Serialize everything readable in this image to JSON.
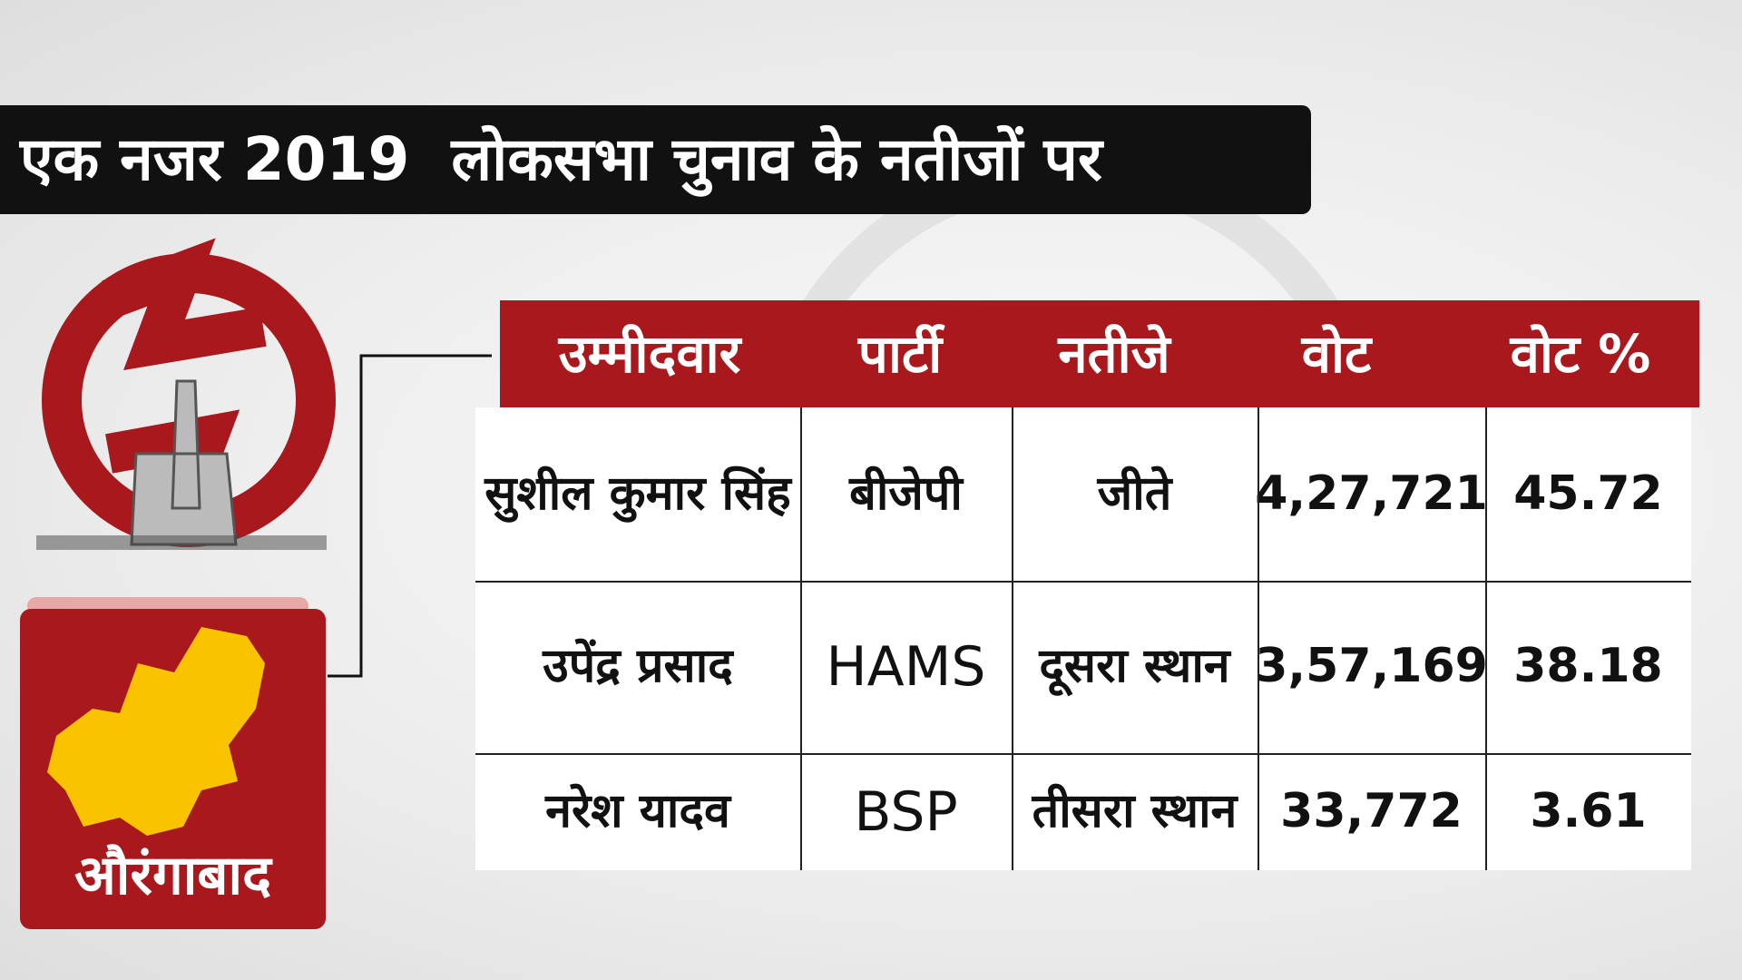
{
  "title": "एक नजर 2019  लोकसभा चुनाव के नतीजों पर",
  "region": "औरंगाबाद",
  "table": {
    "headers": [
      "उम्मीदवार",
      "पार्टी",
      "नतीजे",
      "वोट",
      "वोट %"
    ],
    "rows": [
      [
        "सुशील कुमार सिंह",
        "बीजेपी",
        "जीते",
        "4,27,721",
        "45.72"
      ],
      [
        "उपेंद्र प्रसाद",
        "HAMS",
        "दूसरा स्थान",
        "3,57,169",
        "38.18"
      ],
      [
        "नरेश यादव",
        "BSP",
        "तीसरा स्थान",
        "33,772",
        "3.61"
      ]
    ]
  }
}
